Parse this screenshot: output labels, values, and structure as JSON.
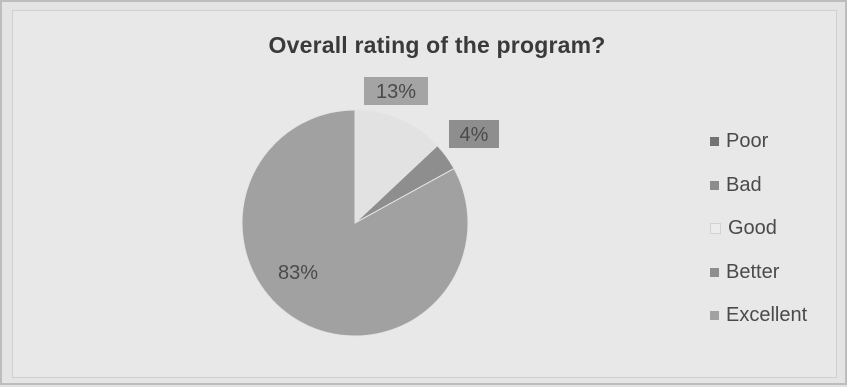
{
  "chart_data": {
    "type": "pie",
    "title": "Overall rating of the program?",
    "legend_position": "right",
    "slices": [
      {
        "name": "Poor",
        "value": 0,
        "color": "#737373",
        "label": ""
      },
      {
        "name": "Bad",
        "value": 0,
        "color": "#8c8c8c",
        "label": ""
      },
      {
        "name": "Good",
        "value": 13,
        "color": "#e2e2e2",
        "label": "13%"
      },
      {
        "name": "Better",
        "value": 4,
        "color": "#8e8e8e",
        "label": "4%"
      },
      {
        "name": "Excellent",
        "value": 83,
        "color": "#a1a1a1",
        "label": "83%"
      }
    ]
  }
}
